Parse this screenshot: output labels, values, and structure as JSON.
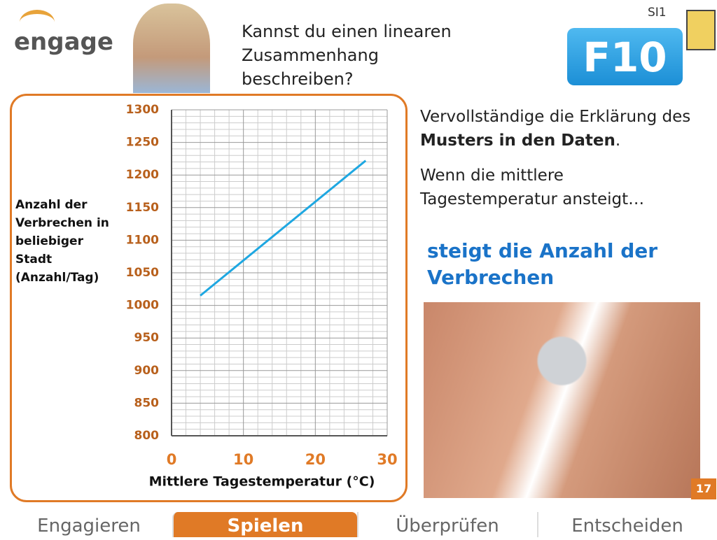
{
  "header": {
    "logo": "engage",
    "question": "Kannst du einen linearen Zusammenhang beschreiben?",
    "code": "SI1",
    "badge": "F10"
  },
  "chart_data": {
    "type": "line",
    "x_label": "Mittlere Tagestemperatur (°C)",
    "y_label": "Anzahl der Verbrechen in beliebiger Stadt (Anzahl/Tag)",
    "x": [
      4,
      27
    ],
    "values": [
      1015,
      1222
    ],
    "color": "#1ea7e1",
    "xlim": [
      0,
      30
    ],
    "xticks": [
      0,
      10,
      20,
      30
    ],
    "ylim": [
      800,
      1300
    ],
    "yticks": [
      800,
      850,
      900,
      950,
      1000,
      1050,
      1100,
      1150,
      1200,
      1250,
      1300
    ],
    "grid": true
  },
  "instruction": [
    "Vervollständige die Erklärung des ",
    "Musters in den Daten",
    "."
  ],
  "prompt": "Wenn die mittlere Tagestemperatur ansteigt…",
  "answer": "steigt die Anzahl der Verbrechen",
  "page_number": "17",
  "tabs": [
    "Engagieren",
    "Spielen",
    "Überprüfen",
    "Entscheiden"
  ]
}
